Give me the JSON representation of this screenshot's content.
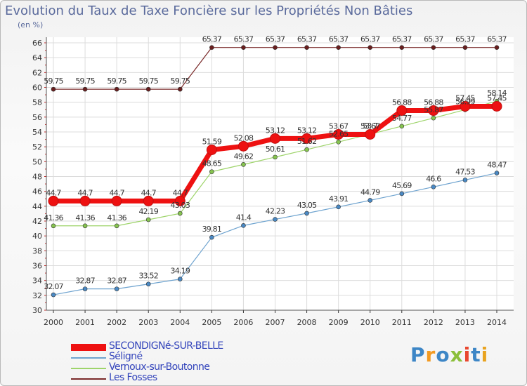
{
  "title": "Evolution du Taux de Taxe Foncière sur les Propriétés Non Bâties",
  "unit_label": "(en %)",
  "logo": {
    "text": "Proxiti",
    "colors": [
      "#3d86c6",
      "#f29a22",
      "#3d86c6",
      "#8bbf3a",
      "#e9472f",
      "#3d86c6",
      "#e9a31f"
    ]
  },
  "chart_data": {
    "type": "line",
    "title": "Evolution du Taux de Taxe Foncière sur les Propriétés Non Bâties",
    "ylabel": "(en %)",
    "x": [
      "2000",
      "2001",
      "2002",
      "2003",
      "2004",
      "2005",
      "2006",
      "2007",
      "2008",
      "2009",
      "2010",
      "2011",
      "2012",
      "2013",
      "2014"
    ],
    "ylim": [
      30,
      66
    ],
    "yticks": [
      30,
      32,
      34,
      36,
      38,
      40,
      42,
      44,
      46,
      48,
      50,
      52,
      54,
      56,
      58,
      60,
      62,
      64,
      66
    ],
    "grid": true,
    "legend_position": "bottom-left",
    "series": [
      {
        "name": "SECONDIGNé-SUR-BELLE",
        "color": "#ee1111",
        "point_color": "#ee1111",
        "width": 7,
        "values": [
          44.7,
          44.7,
          44.7,
          44.7,
          44.7,
          51.59,
          52.08,
          53.12,
          53.12,
          53.67,
          53.67,
          56.88,
          56.88,
          57.45,
          57.45
        ],
        "labels": [
          "44.7",
          "44.7",
          "44.7",
          "44.7",
          "44.7",
          "51.59",
          "52.08",
          "53.12",
          "53.12",
          "53.67",
          "53.67",
          "56.88",
          "56.88",
          "57.45",
          "57.45"
        ]
      },
      {
        "name": "Séligné",
        "color": "#6ea3cf",
        "point_color": "#4a89c4",
        "width": 1.2,
        "values": [
          32.07,
          32.87,
          32.87,
          33.52,
          34.19,
          39.81,
          41.4,
          42.23,
          43.05,
          43.91,
          44.79,
          45.69,
          46.6,
          47.53,
          48.47
        ],
        "labels": [
          "32.07",
          "32.87",
          "32.87",
          "33.52",
          "34.19",
          "39.81",
          "41.4",
          "42.23",
          "43.05",
          "43.91",
          "44.79",
          "45.69",
          "46.6",
          "47.53",
          "48.47"
        ]
      },
      {
        "name": "Vernoux-sur-Boutonne",
        "color": "#9ed46a",
        "point_color": "#86c44f",
        "width": 1.2,
        "values": [
          41.36,
          41.36,
          41.36,
          42.19,
          43.03,
          48.65,
          49.62,
          50.61,
          51.62,
          52.65,
          53.7,
          54.77,
          55.87,
          56.99,
          58.14
        ],
        "labels": [
          "41.36",
          "41.36",
          "41.36",
          "42.19",
          "43.03",
          "48.65",
          "49.62",
          "50.61",
          "51.62",
          "52.65",
          "53.7",
          "54.77",
          "55.87",
          "56.99",
          "58.14"
        ]
      },
      {
        "name": "Les Fosses",
        "color": "#7a2a2a",
        "point_color": "#6a1e1e",
        "width": 1.2,
        "values": [
          59.75,
          59.75,
          59.75,
          59.75,
          59.75,
          65.37,
          65.37,
          65.37,
          65.37,
          65.37,
          65.37,
          65.37,
          65.37,
          65.37,
          65.37
        ],
        "labels": [
          "59.75",
          "59.75",
          "59.75",
          "59.75",
          "59.75",
          "65.37",
          "65.37",
          "65.37",
          "65.37",
          "65.37",
          "65.37",
          "65.37",
          "65.37",
          "65.37",
          "65.37"
        ]
      }
    ]
  }
}
